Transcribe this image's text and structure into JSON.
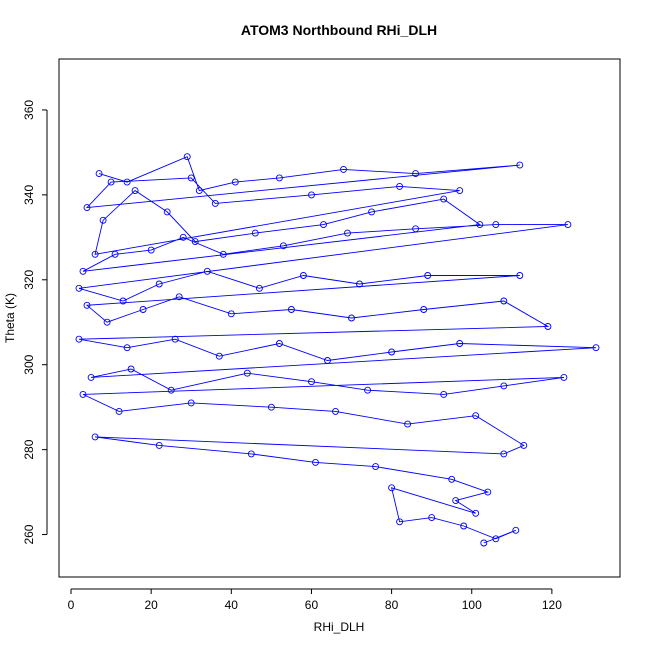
{
  "chart_data": {
    "type": "line",
    "title": "ATOM3 Northbound RHi_DLH",
    "xlabel": "RHi_DLH",
    "ylabel": "Theta (K)",
    "xlim": [
      -3,
      137
    ],
    "ylim": [
      250,
      372
    ],
    "xticks": [
      0,
      20,
      40,
      60,
      80,
      100,
      120
    ],
    "yticks": [
      260,
      280,
      300,
      320,
      340,
      360
    ],
    "grid": false,
    "color": "#0000ff",
    "marker": "open-circle",
    "series": [
      {
        "values": [
          [
            7,
            345
          ],
          [
            14,
            343
          ],
          [
            29,
            349
          ],
          [
            32,
            341
          ],
          [
            41,
            343
          ],
          [
            52,
            344
          ],
          [
            68,
            346
          ],
          [
            86,
            345
          ],
          [
            112,
            347
          ],
          [
            4,
            337
          ],
          [
            10,
            343
          ],
          [
            30,
            344
          ],
          [
            36,
            338
          ],
          [
            60,
            340
          ],
          [
            82,
            342
          ],
          [
            97,
            341
          ],
          [
            6,
            326
          ],
          [
            8,
            334
          ],
          [
            16,
            341
          ],
          [
            24,
            336
          ],
          [
            31,
            329
          ],
          [
            46,
            331
          ],
          [
            63,
            333
          ],
          [
            75,
            336
          ],
          [
            93,
            339
          ],
          [
            102,
            333
          ],
          [
            3,
            322
          ],
          [
            11,
            326
          ],
          [
            20,
            327
          ],
          [
            28,
            330
          ],
          [
            38,
            326
          ],
          [
            53,
            328
          ],
          [
            69,
            331
          ],
          [
            86,
            332
          ],
          [
            106,
            333
          ],
          [
            124,
            333
          ],
          [
            2,
            318
          ],
          [
            13,
            315
          ],
          [
            22,
            319
          ],
          [
            34,
            322
          ],
          [
            47,
            318
          ],
          [
            58,
            321
          ],
          [
            72,
            319
          ],
          [
            89,
            321
          ],
          [
            112,
            321
          ],
          [
            4,
            314
          ],
          [
            9,
            310
          ],
          [
            18,
            313
          ],
          [
            27,
            316
          ],
          [
            40,
            312
          ],
          [
            55,
            313
          ],
          [
            70,
            311
          ],
          [
            88,
            313
          ],
          [
            108,
            315
          ],
          [
            119,
            309
          ],
          [
            2,
            306
          ],
          [
            14,
            304
          ],
          [
            26,
            306
          ],
          [
            37,
            302
          ],
          [
            52,
            305
          ],
          [
            64,
            301
          ],
          [
            80,
            303
          ],
          [
            97,
            305
          ],
          [
            131,
            304
          ],
          [
            5,
            297
          ],
          [
            15,
            299
          ],
          [
            25,
            294
          ],
          [
            44,
            298
          ],
          [
            60,
            296
          ],
          [
            74,
            294
          ],
          [
            93,
            293
          ],
          [
            108,
            295
          ],
          [
            123,
            297
          ],
          [
            3,
            293
          ],
          [
            12,
            289
          ],
          [
            30,
            291
          ],
          [
            50,
            290
          ],
          [
            66,
            289
          ],
          [
            84,
            286
          ],
          [
            101,
            288
          ],
          [
            113,
            281
          ],
          [
            108,
            279
          ],
          [
            6,
            283
          ],
          [
            22,
            281
          ],
          [
            45,
            279
          ],
          [
            61,
            277
          ],
          [
            76,
            276
          ],
          [
            95,
            273
          ],
          [
            104,
            270
          ],
          [
            96,
            268
          ],
          [
            101,
            265
          ],
          [
            80,
            271
          ],
          [
            82,
            263
          ],
          [
            90,
            264
          ],
          [
            98,
            262
          ],
          [
            106,
            259
          ],
          [
            111,
            261
          ],
          [
            103,
            258
          ]
        ]
      }
    ]
  }
}
